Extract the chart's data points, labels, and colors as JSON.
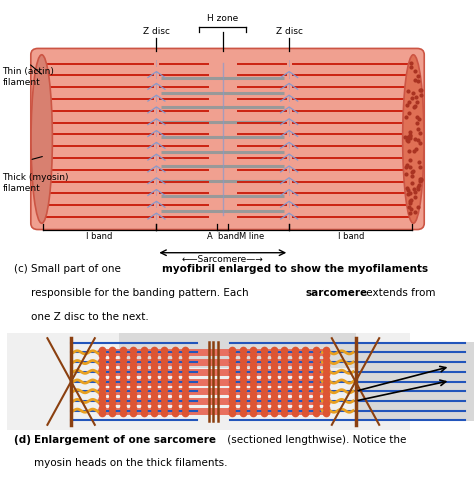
{
  "bg_color": "#ffffff",
  "muscle_body": "#F0A090",
  "muscle_edge": "#CC5544",
  "muscle_left_end": "#E09080",
  "muscle_right_end": "#E07060",
  "filament_red": "#CC2211",
  "filament_gray": "#999999",
  "zdisc_color": "#8899CC",
  "mline_color": "#8899CC",
  "text_color": "#111111",
  "actin_blue": "#2255BB",
  "myosin_orange": "#E8A020",
  "myosin_thick": "#E87060",
  "zline_brown": "#8B4010",
  "dot_color": "#AA3322",
  "label_thin": "Thin (actin)\nfilament",
  "label_thick": "Thick (myosin)\nfilament",
  "label_zdisc1": "Z disc",
  "label_zdisc2": "Z disc",
  "label_hzone": "H zone",
  "label_iband1": "I band",
  "label_aband": "A  band",
  "label_iband2": "I band",
  "label_mline": "M line",
  "label_sarcomere": "Sarcomere",
  "cap_c1_pre": "(c) Small part of one ",
  "cap_c1_bold": "myofibril enlarged to show the myofilaments",
  "cap_c2_pre": "responsible for the banding pattern. Each ",
  "cap_c2_bold": "sarcomere",
  "cap_c2_post": " extends from",
  "cap_c3": "one Z disc to the next.",
  "cap_d_bold": "Enlargement of one sarcomere",
  "cap_d_post": " (sectioned lengthwise). Notice the",
  "cap_d2": "myosin heads on the thick filaments."
}
